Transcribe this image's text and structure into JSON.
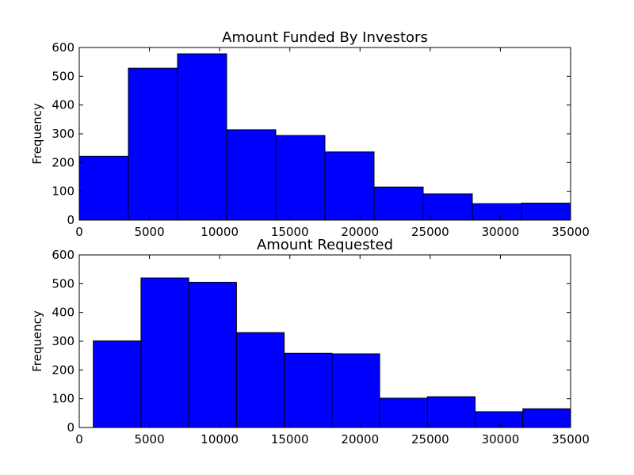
{
  "chart_data": [
    {
      "type": "bar",
      "title": "Amount Funded By Investors",
      "ylabel": "Frequency",
      "xlabel": "",
      "xlim": [
        0,
        35000
      ],
      "ylim": [
        0,
        600
      ],
      "xticks": [
        0,
        5000,
        10000,
        15000,
        20000,
        25000,
        30000,
        35000
      ],
      "yticks": [
        0,
        100,
        200,
        300,
        400,
        500,
        600
      ],
      "bins": [
        {
          "start": 0,
          "end": 3500,
          "value": 222
        },
        {
          "start": 3500,
          "end": 7000,
          "value": 528
        },
        {
          "start": 7000,
          "end": 10500,
          "value": 578
        },
        {
          "start": 10500,
          "end": 14000,
          "value": 314
        },
        {
          "start": 14000,
          "end": 17500,
          "value": 294
        },
        {
          "start": 17500,
          "end": 21000,
          "value": 237
        },
        {
          "start": 21000,
          "end": 24500,
          "value": 115
        },
        {
          "start": 24500,
          "end": 28000,
          "value": 91
        },
        {
          "start": 28000,
          "end": 31500,
          "value": 57
        },
        {
          "start": 31500,
          "end": 35000,
          "value": 59
        }
      ],
      "color": "#0000ff",
      "grid": false
    },
    {
      "type": "bar",
      "title": "Amount Requested",
      "ylabel": "Frequency",
      "xlabel": "",
      "xlim": [
        0,
        35000
      ],
      "ylim": [
        0,
        600
      ],
      "xticks": [
        0,
        5000,
        10000,
        15000,
        20000,
        25000,
        30000,
        35000
      ],
      "yticks": [
        0,
        100,
        200,
        300,
        400,
        500,
        600
      ],
      "bins": [
        {
          "start": 1000,
          "end": 4400,
          "value": 301
        },
        {
          "start": 4400,
          "end": 7800,
          "value": 520
        },
        {
          "start": 7800,
          "end": 11200,
          "value": 505
        },
        {
          "start": 11200,
          "end": 14600,
          "value": 330
        },
        {
          "start": 14600,
          "end": 18000,
          "value": 258
        },
        {
          "start": 18000,
          "end": 21400,
          "value": 256
        },
        {
          "start": 21400,
          "end": 24800,
          "value": 102
        },
        {
          "start": 24800,
          "end": 28200,
          "value": 107
        },
        {
          "start": 28200,
          "end": 31600,
          "value": 55
        },
        {
          "start": 31600,
          "end": 35000,
          "value": 65
        }
      ],
      "color": "#0000ff",
      "grid": false
    }
  ]
}
